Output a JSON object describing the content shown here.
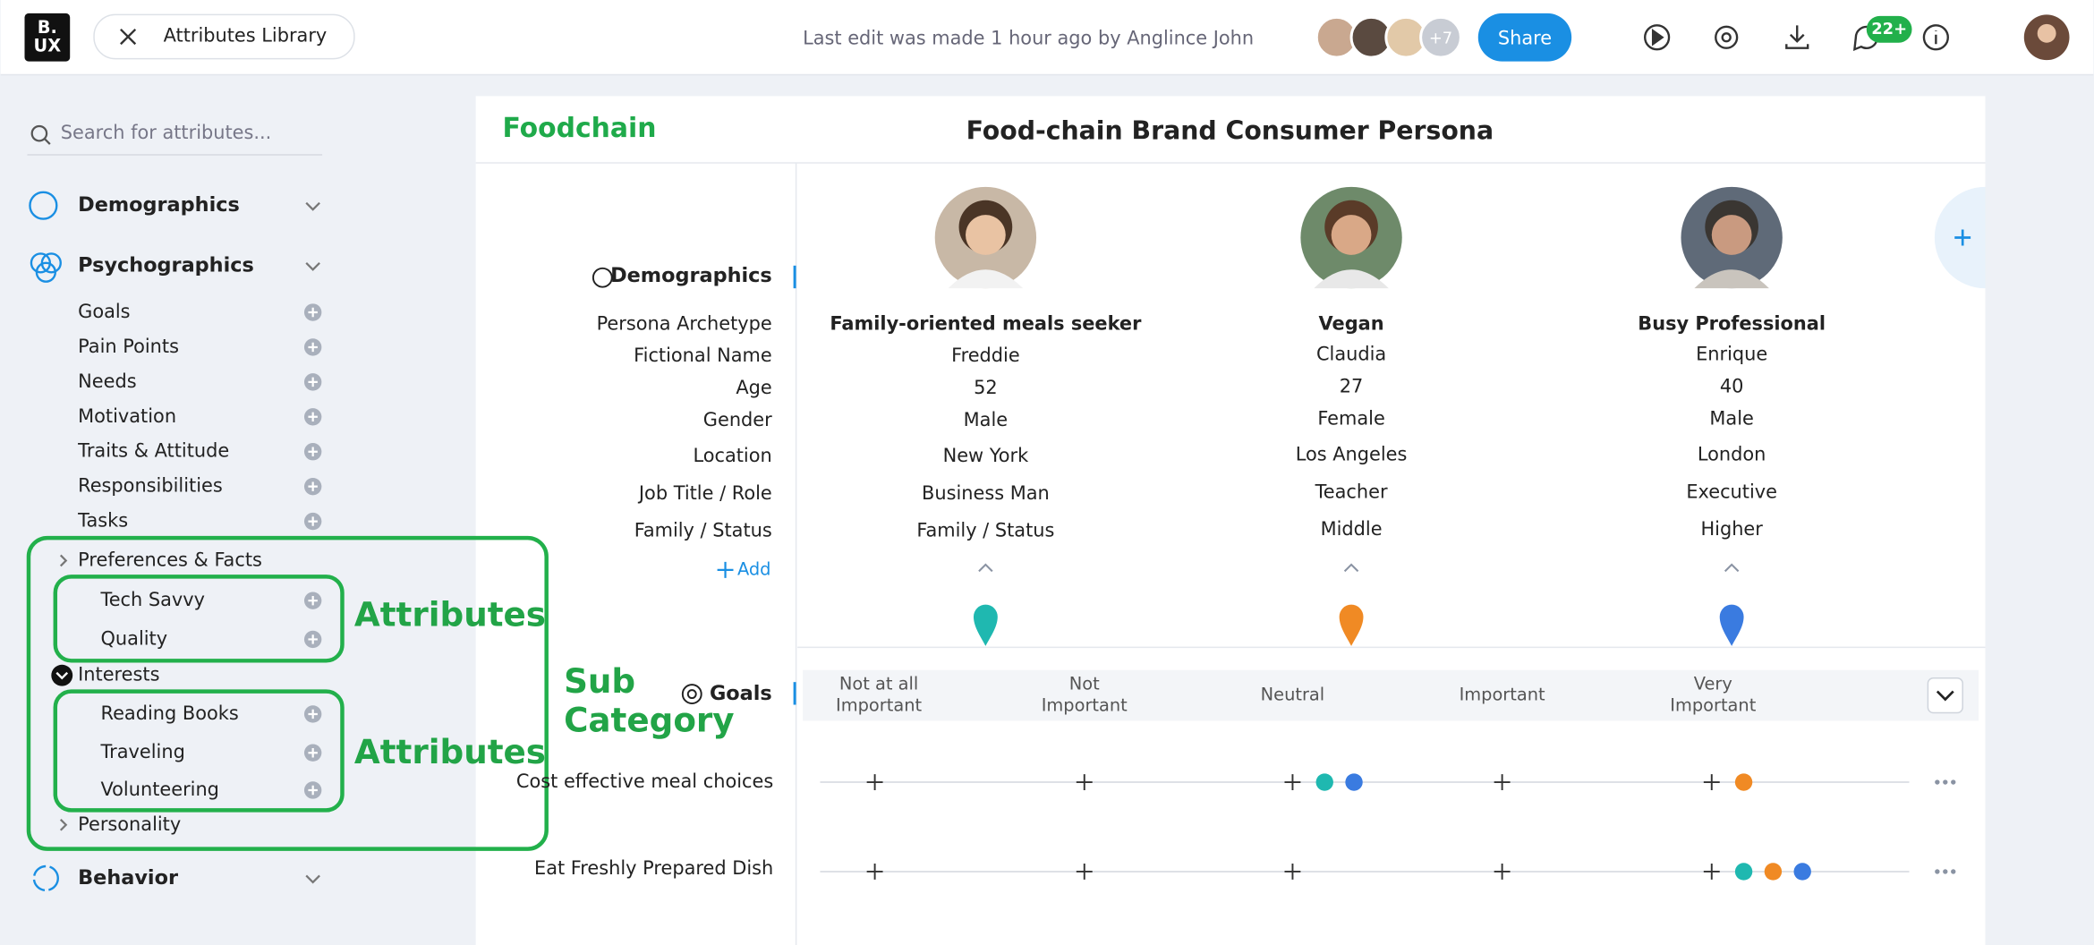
{
  "header": {
    "logo": [
      "B.",
      "UX"
    ],
    "title": "Attributes Library",
    "last_edit": "Last edit was made 1 hour ago by Anglince John",
    "avatar_more": "+7",
    "share": "Share",
    "notifications": "22+"
  },
  "sidebar": {
    "search_placeholder": "Search for attributes...",
    "demographics": "Demographics",
    "psychographics": {
      "label": "Psychographics",
      "items": [
        "Goals",
        "Pain Points",
        "Needs",
        "Motivation",
        "Traits & Attitude",
        "Responsibilities",
        "Tasks"
      ],
      "subcategories": [
        {
          "label": "Preferences & Facts",
          "items": [
            "Tech Savvy",
            "Quality"
          ]
        },
        {
          "label": "Interests",
          "items": [
            "Reading Books",
            "Traveling",
            "Volunteering"
          ]
        },
        {
          "label": "Personality"
        }
      ]
    },
    "behavior": "Behavior"
  },
  "annotations": {
    "attributes_top": "Attributes",
    "attributes_bottom": "Attributes",
    "sub_category": [
      "Sub",
      "Category"
    ]
  },
  "document": {
    "brand": "Foodchain",
    "title": "Food-chain Brand Consumer Persona",
    "demographics": {
      "heading": "Demographics",
      "fields": [
        "Persona Archetype",
        "Fictional Name",
        "Age",
        "Gender",
        "Location",
        "Job Title / Role",
        "Family / Status"
      ],
      "add": "Add"
    },
    "personas": [
      {
        "color": "#1fb8b0",
        "values": [
          "Family-oriented meals seeker",
          "Freddie",
          52,
          "Male",
          "New York",
          "Business Man",
          "Family / Status"
        ]
      },
      {
        "color": "#f08a24",
        "values": [
          "Vegan",
          "Claudia",
          27,
          "Female",
          "Los Angeles",
          "Teacher",
          "Middle"
        ]
      },
      {
        "color": "#3a7be0",
        "values": [
          "Busy Professional",
          "Enrique",
          40,
          "Male",
          "London",
          "Executive",
          "Higher"
        ]
      }
    ],
    "goals": {
      "heading": "Goals",
      "scale": [
        [
          "Not at all",
          "Important"
        ],
        [
          "Not",
          "Important"
        ],
        [
          "Neutral"
        ],
        [
          "Important"
        ],
        [
          "Very",
          "Important"
        ]
      ],
      "rows": [
        {
          "label": "Cost effective meal choices",
          "ratings": [
            2,
            4,
            2
          ]
        },
        {
          "label": "Eat Freshly Prepared Dish",
          "ratings": [
            4,
            4,
            4
          ]
        }
      ]
    }
  }
}
